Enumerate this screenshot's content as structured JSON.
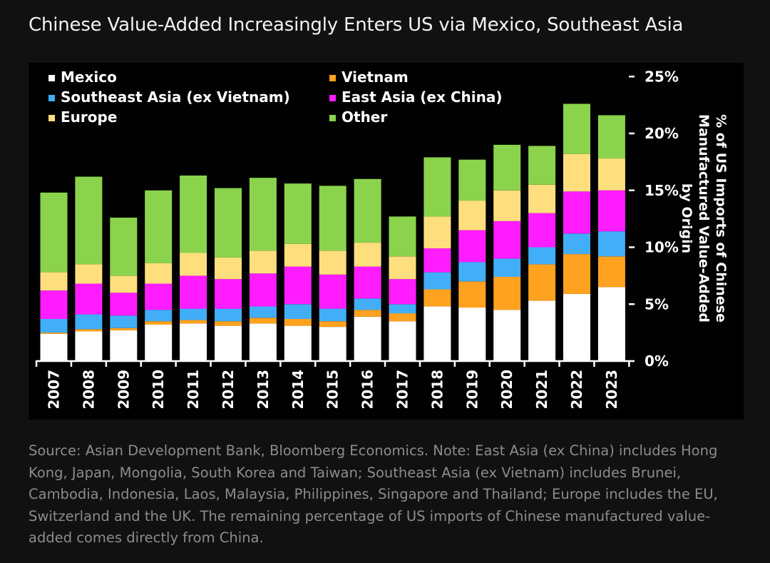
{
  "title": "Chinese Value-Added Increasingly Enters US via Mexico, Southeast Asia",
  "source_note": "Source: Asian Development Bank, Bloomberg Economics. Note: East Asia (ex China) includes Hong Kong, Japan, Mongolia, South Korea and Taiwan; Southeast Asia (ex Vietnam) includes Brunei, Cambodia, Indonesia, Laos, Malaysia, Philippines, Singapore and Thailand; Europe includes the EU, Switzerland and the UK. The remaining percentage of US imports of Chinese manufactured value-added comes directly from China.",
  "chart_data": {
    "type": "bar",
    "stacked": true,
    "ylabel_lines": [
      "% of US Imports of Chinese",
      "Manufactured Value-Added",
      "by Origin"
    ],
    "y_ticks": [
      "0%",
      "5%",
      "10%",
      "15%",
      "20%",
      "25%"
    ],
    "ylim": [
      0,
      25
    ],
    "y_axis_side": "right",
    "legend_position": "top-left",
    "legend_order": [
      "Mexico",
      "Vietnam",
      "Southeast Asia (ex Vietnam)",
      "East Asia (ex China)",
      "Europe",
      "Other"
    ],
    "categories": [
      "2007",
      "2008",
      "2009",
      "2010",
      "2011",
      "2012",
      "2013",
      "2014",
      "2015",
      "2016",
      "2017",
      "2018",
      "2019",
      "2020",
      "2021",
      "2022",
      "2023"
    ],
    "series": [
      {
        "name": "Mexico",
        "color": "#ffffff",
        "values": [
          2.4,
          2.6,
          2.7,
          3.2,
          3.3,
          3.1,
          3.3,
          3.1,
          3.0,
          3.9,
          3.5,
          4.8,
          4.7,
          4.5,
          5.3,
          5.9,
          6.5
        ]
      },
      {
        "name": "Vietnam",
        "color": "#ffa21f",
        "values": [
          0.1,
          0.2,
          0.2,
          0.3,
          0.3,
          0.4,
          0.5,
          0.6,
          0.5,
          0.6,
          0.7,
          1.5,
          2.3,
          2.9,
          3.2,
          3.5,
          2.7
        ]
      },
      {
        "name": "Southeast Asia (ex Vietnam)",
        "color": "#41aef7",
        "values": [
          1.2,
          1.3,
          1.1,
          1.0,
          1.0,
          1.1,
          1.0,
          1.3,
          1.1,
          1.0,
          0.8,
          1.5,
          1.7,
          1.6,
          1.5,
          1.8,
          2.2
        ]
      },
      {
        "name": "East Asia (ex China)",
        "color": "#ff1cff",
        "values": [
          2.5,
          2.7,
          2.0,
          2.3,
          2.9,
          2.6,
          2.9,
          3.3,
          3.0,
          2.8,
          2.2,
          2.1,
          2.8,
          3.3,
          3.0,
          3.7,
          3.6
        ]
      },
      {
        "name": "Europe",
        "color": "#ffdf7d",
        "values": [
          1.6,
          1.7,
          1.5,
          1.8,
          2.0,
          1.9,
          2.0,
          2.0,
          2.1,
          2.1,
          2.0,
          2.8,
          2.6,
          2.7,
          2.5,
          3.3,
          2.8
        ]
      },
      {
        "name": "Other",
        "color": "#8bd34c",
        "values": [
          7.0,
          7.7,
          5.1,
          6.4,
          6.8,
          6.1,
          6.4,
          5.3,
          5.7,
          5.6,
          3.5,
          5.2,
          3.6,
          4.0,
          3.4,
          4.4,
          3.8
        ]
      }
    ]
  }
}
